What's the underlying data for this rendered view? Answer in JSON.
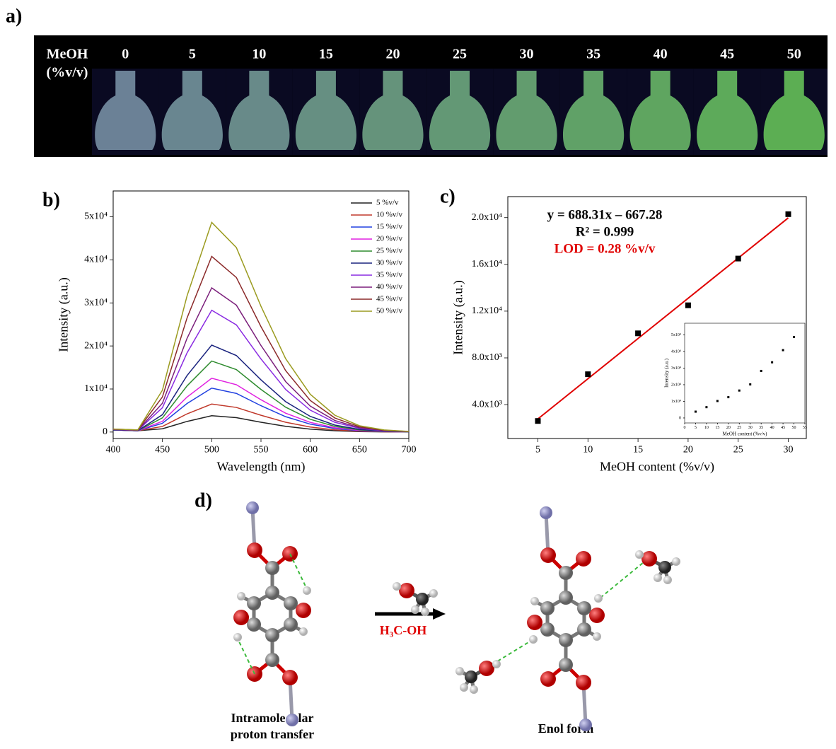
{
  "photo": {
    "label": "a)",
    "row_title": "MeOH",
    "row_unit": "(%v/v)",
    "concentrations": [
      0,
      5,
      10,
      15,
      20,
      25,
      30,
      35,
      40,
      45,
      50
    ]
  },
  "chart_data": [
    {
      "type": "line",
      "label": "b)",
      "x_label": "Wavelength (nm)",
      "y_label": "Intensity (a.u.)",
      "x": [
        400,
        425,
        450,
        475,
        500,
        525,
        550,
        575,
        600,
        625,
        650,
        675,
        700
      ],
      "xlim": [
        400,
        700
      ],
      "xticks": [
        400,
        450,
        500,
        550,
        600,
        650,
        700
      ],
      "ylim": [
        -1500,
        56000
      ],
      "yticks": [
        0,
        {
          "value": 10000,
          "label": "1x10⁴"
        },
        {
          "value": 20000,
          "label": "2x10⁴"
        },
        {
          "value": 30000,
          "label": "3x10⁴"
        },
        {
          "value": 40000,
          "label": "4x10⁴"
        },
        {
          "value": 50000,
          "label": "5x10⁴"
        }
      ],
      "legend": "upper right",
      "series": [
        {
          "name": "5 %v/v",
          "color": "#222222",
          "values": [
            500,
            300,
            760,
            2470,
            3800,
            3340,
            2280,
            1330,
            680,
            300,
            110,
            40,
            10
          ]
        },
        {
          "name": "10 %v/v",
          "color": "#c0392b",
          "values": [
            500,
            300,
            1300,
            4230,
            6500,
            5720,
            3900,
            2280,
            1170,
            520,
            200,
            70,
            20
          ]
        },
        {
          "name": "15 %v/v",
          "color": "#2040e0",
          "values": [
            500,
            300,
            2040,
            6630,
            10200,
            8980,
            6120,
            3570,
            1840,
            820,
            310,
            100,
            30
          ]
        },
        {
          "name": "20 %v/v",
          "color": "#e020e0",
          "values": [
            500,
            300,
            2500,
            8130,
            12500,
            11000,
            7500,
            4380,
            2250,
            1000,
            380,
            130,
            40
          ]
        },
        {
          "name": "25 %v/v",
          "color": "#2e8b2e",
          "values": [
            500,
            300,
            3300,
            10730,
            16500,
            14520,
            9900,
            5780,
            2970,
            1320,
            500,
            170,
            50
          ]
        },
        {
          "name": "30 %v/v",
          "color": "#1a237e",
          "values": [
            500,
            300,
            4040,
            13130,
            20200,
            17780,
            12120,
            7070,
            3640,
            1620,
            610,
            200,
            60
          ]
        },
        {
          "name": "35 %v/v",
          "color": "#8a2be2",
          "values": [
            600,
            400,
            5660,
            18400,
            28300,
            24900,
            16980,
            9910,
            5090,
            2260,
            850,
            280,
            80
          ]
        },
        {
          "name": "40 %v/v",
          "color": "#7b1f7b",
          "values": [
            600,
            400,
            6700,
            21780,
            33500,
            29480,
            20100,
            11730,
            6030,
            2680,
            1010,
            340,
            100
          ]
        },
        {
          "name": "45 %v/v",
          "color": "#8b2a2a",
          "values": [
            700,
            500,
            8160,
            26520,
            40800,
            35900,
            24480,
            14280,
            7340,
            3260,
            1220,
            410,
            120
          ]
        },
        {
          "name": "50 %v/v",
          "color": "#9b9b20",
          "values": [
            700,
            500,
            9740,
            31660,
            48700,
            42860,
            29220,
            17050,
            8770,
            3900,
            1460,
            490,
            150
          ]
        }
      ]
    },
    {
      "type": "scatter",
      "label": "c)",
      "x_label": "MeOH content (%v/v)",
      "y_label": "Intensity (a.u.)",
      "x": [
        5,
        10,
        15,
        20,
        25,
        30
      ],
      "values": [
        2600,
        6600,
        10100,
        12500,
        16500,
        20300
      ],
      "color": "#000000",
      "xlim": [
        2,
        31.8
      ],
      "xticks": [
        5,
        10,
        15,
        20,
        25,
        30
      ],
      "ylim": [
        1100,
        21800
      ],
      "yticks": [
        {
          "value": 4000,
          "label": "4.0x10³"
        },
        {
          "value": 8000,
          "label": "8.0x10³"
        },
        {
          "value": 12000,
          "label": "1.2x10⁴"
        },
        {
          "value": 16000,
          "label": "1.6x10⁴"
        },
        {
          "value": 20000,
          "label": "2.0x10⁴"
        }
      ],
      "fit": {
        "slope": 688.31,
        "intercept": -667.28,
        "color": "#e00000"
      },
      "annotations": [
        {
          "text": "y = 688.31x – 667.28",
          "color": "#000000"
        },
        {
          "text": "R² = 0.999",
          "color": "#000000"
        },
        {
          "text": "LOD = 0.28 %v/v",
          "color": "#e00000"
        }
      ]
    },
    {
      "type": "scatter",
      "x_label": "MeOH content (%v/v)",
      "y_label": "Intensity (a.u.)",
      "x": [
        5,
        10,
        15,
        20,
        25,
        30,
        35,
        40,
        45,
        50
      ],
      "values": [
        3800,
        6500,
        10200,
        12500,
        16500,
        20200,
        28300,
        33500,
        40800,
        48700
      ],
      "color": "#000000",
      "xlim": [
        0,
        55
      ],
      "xticks": [
        0,
        5,
        10,
        15,
        20,
        25,
        30,
        35,
        40,
        45,
        50,
        55
      ],
      "ylim": [
        -3000,
        57000
      ],
      "yticks": [
        0,
        {
          "value": 10000,
          "label": "1x10⁴"
        },
        {
          "value": 20000,
          "label": "2x10⁴"
        },
        {
          "value": 30000,
          "label": "3x10⁴"
        },
        {
          "value": 40000,
          "label": "4x10⁴"
        },
        {
          "value": 50000,
          "label": "5x10⁴"
        }
      ]
    }
  ],
  "scheme": {
    "label": "d)",
    "reagent": "H₃C-OH",
    "left_caption": [
      "Intramolecular",
      "proton transfer"
    ],
    "right_caption": "Enol form"
  }
}
